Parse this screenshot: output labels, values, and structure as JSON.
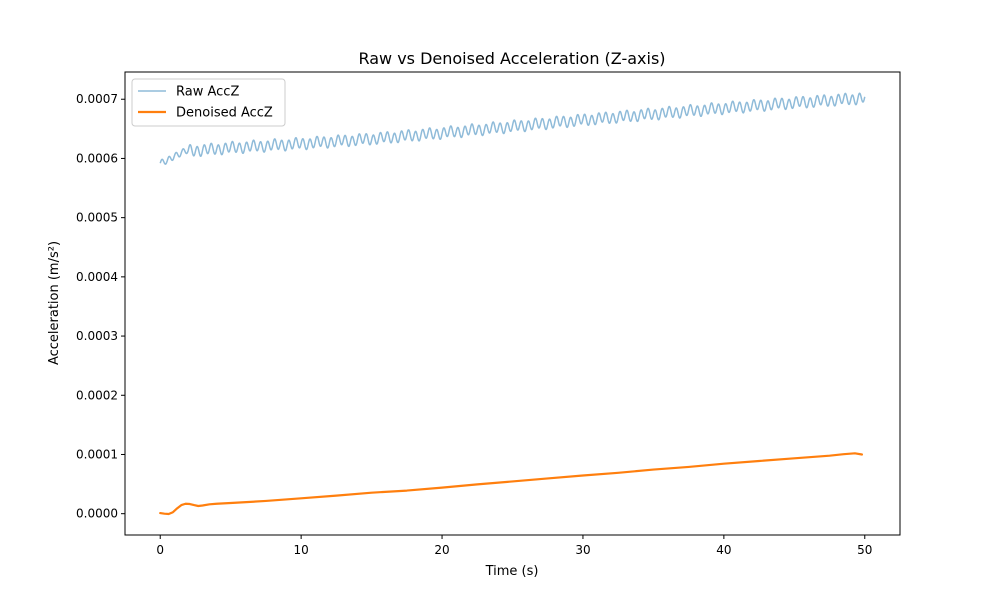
{
  "chart_data": {
    "type": "line",
    "title": "Raw vs Denoised Acceleration (Z-axis)",
    "xlabel": "Time (s)",
    "ylabel": "Acceleration (m/s²)",
    "xlim": [
      -2.5,
      52.5
    ],
    "ylim": [
      -3.6e-05,
      0.000746
    ],
    "xticks": [
      0,
      10,
      20,
      30,
      40,
      50
    ],
    "xtick_labels": [
      "0",
      "10",
      "20",
      "30",
      "40",
      "50"
    ],
    "yticks": [
      0,
      0.0001,
      0.0002,
      0.0003,
      0.0004,
      0.0005,
      0.0006,
      0.0007
    ],
    "ytick_labels": [
      "0.0000",
      "0.0001",
      "0.0002",
      "0.0003",
      "0.0004",
      "0.0005",
      "0.0006",
      "0.0007"
    ],
    "grid": false,
    "legend_position": "top-left",
    "series": [
      {
        "name": "Raw AccZ",
        "color": "#1f77b4",
        "opacity": 0.5,
        "trend": {
          "x": [
            0,
            0.5,
            1,
            1.5,
            2,
            3,
            5,
            10,
            15,
            20,
            25,
            30,
            35,
            40,
            45,
            50
          ],
          "y": [
            0.000592,
            0.000595,
            0.000605,
            0.00061,
            0.000613,
            0.000614,
            0.000618,
            0.000625,
            0.000633,
            0.000643,
            0.000654,
            0.000665,
            0.000675,
            0.000685,
            0.000694,
            0.000702
          ]
        },
        "oscillation_amplitude": 8.5e-06,
        "oscillation_period_s": 0.5
      },
      {
        "name": "Denoised AccZ",
        "color": "#ff7f0e",
        "opacity": 1,
        "x": [
          0,
          0.3,
          0.6,
          0.9,
          1.2,
          1.5,
          1.8,
          2.1,
          2.4,
          2.7,
          3,
          3.5,
          4,
          5,
          7.5,
          10,
          12.5,
          15,
          17.5,
          20,
          22.5,
          25,
          27.5,
          30,
          32.5,
          35,
          37.5,
          40,
          42.5,
          45,
          47.5,
          48.5,
          49.3,
          49.8
        ],
        "y": [
          1e-06,
          0.0,
          -5e-07,
          2.5e-06,
          9e-06,
          1.45e-05,
          1.68e-05,
          1.63e-05,
          1.45e-05,
          1.3e-05,
          1.38e-05,
          1.58e-05,
          1.68e-05,
          1.8e-05,
          2.15e-05,
          2.6e-05,
          3.05e-05,
          3.55e-05,
          3.9e-05,
          4.4e-05,
          4.95e-05,
          5.45e-05,
          5.95e-05,
          6.45e-05,
          6.9e-05,
          7.45e-05,
          7.9e-05,
          8.45e-05,
          8.9e-05,
          9.35e-05,
          9.8e-05,
          0.0001005,
          0.000102,
          0.0001
        ]
      }
    ]
  }
}
